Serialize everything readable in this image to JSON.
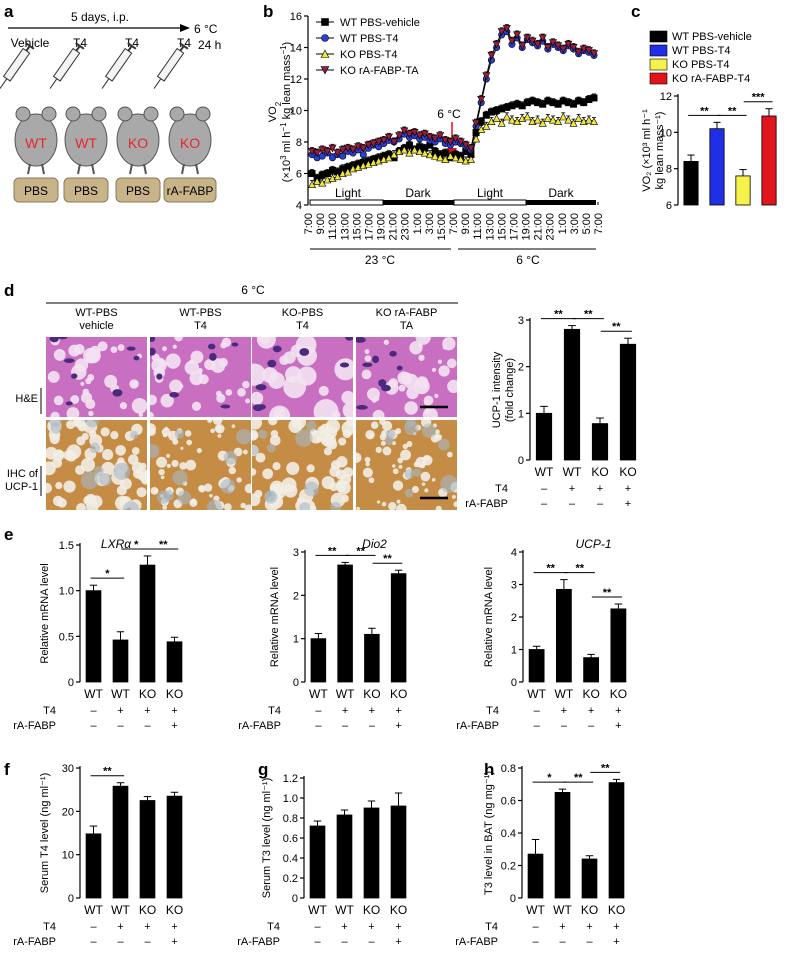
{
  "panels": {
    "a": {
      "letter": "a",
      "timeline_label": "5 days, i.p.",
      "end_label_1": "6 °C",
      "end_label_2": "24 h",
      "injections": [
        "Vehicle",
        "T4",
        "T4",
        "T4"
      ],
      "mice": [
        "WT",
        "WT",
        "KO",
        "KO"
      ],
      "pumps": [
        "PBS",
        "PBS",
        "PBS",
        "rA-FABP"
      ],
      "colors": {
        "mouse_body": "#a9a9a9",
        "mouse_text": "#e8262b",
        "pump": "#c9b48a"
      }
    },
    "b": {
      "letter": "b"
    },
    "c": {
      "letter": "c"
    },
    "d": {
      "letter": "d",
      "condition": "6 °C",
      "columns": [
        [
          "WT-PBS",
          "vehicle"
        ],
        [
          "WT-PBS",
          "T4"
        ],
        [
          "KO-PBS",
          "T4"
        ],
        [
          "KO rA-FABP",
          "TA"
        ]
      ],
      "rows": [
        [
          "H&E"
        ],
        [
          "IHC of",
          "UCP-1"
        ]
      ],
      "colors": {
        "he_base": "#c96fc1",
        "he_fat": "#f3e2f2",
        "he_nuc": "#4b2a7d",
        "ihc_base": "#c58c45",
        "ihc_fat": "#f2ede4",
        "ihc_blue": "#a7b7c7"
      }
    },
    "e": {
      "letter": "e"
    },
    "f": {
      "letter": "f"
    },
    "g": {
      "letter": "g"
    },
    "h": {
      "letter": "h"
    }
  },
  "group_labels": {
    "row1": [
      "WT",
      "WT",
      "KO",
      "KO"
    ],
    "row2_label": "T4",
    "row2": [
      "–",
      "+",
      "+",
      "+"
    ],
    "row3_label": "rA-FABP",
    "row3": [
      "–",
      "–",
      "–",
      "+"
    ]
  },
  "chart_data": [
    {
      "id": "b",
      "type": "line",
      "ylabel_line1": "VO",
      "ylabel_sub": "2",
      "ylabel_line2": "(×10",
      "ylabel_line2b": "3",
      "ylabel_line2c": " ml h",
      "ylabel_line2d": "−1",
      "ylabel_line2e": " kg lean mass",
      "ylabel_line2f": "−1",
      "ylabel_line2g": ")",
      "ylim": [
        4,
        16
      ],
      "yticks": [
        4,
        6,
        8,
        10,
        12,
        14,
        16
      ],
      "xticks": [
        "7:00",
        "9:00",
        "11:00",
        "13:00",
        "15:00",
        "17:00",
        "19:00",
        "21:00",
        "23:00",
        "1:00",
        "3:00",
        "15:00",
        "7:00",
        "9:00",
        "11:00",
        "13:00",
        "15:00",
        "17:00",
        "19:00",
        "21:00",
        "23:00",
        "1:00",
        "3:00",
        "5:00",
        "7:00"
      ],
      "phases": [
        "Light",
        "Dark",
        "Light",
        "Dark"
      ],
      "temperatures": [
        "23 °C",
        "6 °C"
      ],
      "annotation": "6 °C",
      "legend_position": "top-left",
      "series": [
        {
          "name": "WT PBS-vehicle",
          "color": "#000000",
          "marker": "square",
          "values": [
            6.0,
            5.7,
            5.9,
            6.0,
            6.2,
            6.1,
            6.3,
            6.4,
            6.5,
            6.6,
            6.7,
            6.8,
            6.9,
            7.0,
            7.1,
            7.2,
            7.0,
            7.4,
            7.6,
            7.8,
            7.5,
            7.7,
            7.6,
            7.8,
            7.4,
            7.2,
            7.3,
            7.0,
            7.2,
            7.1,
            7.4,
            7.2,
            8.6,
            9.3,
            9.7,
            9.9,
            10.0,
            10.1,
            10.2,
            10.3,
            10.4,
            10.3,
            10.5,
            10.6,
            10.5,
            10.4,
            10.6,
            10.5,
            10.4,
            10.6,
            10.5,
            10.4,
            10.6,
            10.5,
            10.7,
            10.8
          ]
        },
        {
          "name": "WT PBS-T4",
          "color": "#2a3fd8",
          "marker": "circle",
          "values": [
            7.2,
            7.0,
            7.1,
            7.3,
            7.0,
            7.2,
            7.1,
            7.4,
            7.3,
            7.5,
            7.2,
            7.6,
            7.8,
            7.7,
            7.9,
            8.1,
            8.0,
            8.2,
            8.5,
            8.3,
            8.4,
            8.2,
            8.3,
            8.1,
            8.0,
            8.2,
            7.9,
            7.8,
            8.0,
            7.9,
            7.7,
            7.5,
            9.0,
            10.5,
            12.0,
            13.2,
            14.0,
            14.8,
            15.0,
            14.2,
            14.6,
            14.0,
            14.5,
            14.3,
            14.1,
            14.4,
            13.9,
            14.2,
            14.0,
            13.8,
            14.1,
            13.9,
            13.6,
            13.8,
            13.7,
            13.5
          ]
        },
        {
          "name": "KO PBS-T4",
          "color": "#f0e63b",
          "marker": "triangle-up",
          "values": [
            5.3,
            5.5,
            5.4,
            5.6,
            5.7,
            5.8,
            6.0,
            6.1,
            6.3,
            6.4,
            6.5,
            6.6,
            6.7,
            6.8,
            6.9,
            7.0,
            7.2,
            7.4,
            7.5,
            7.3,
            7.5,
            7.4,
            7.3,
            7.2,
            7.1,
            7.0,
            6.9,
            7.1,
            7.0,
            6.9,
            6.8,
            6.9,
            8.2,
            8.8,
            9.0,
            9.3,
            9.5,
            9.2,
            9.6,
            9.4,
            9.3,
            9.5,
            9.6,
            9.3,
            9.4,
            9.2,
            9.5,
            9.4,
            9.3,
            9.6,
            9.4,
            9.2,
            9.5,
            9.3,
            9.4,
            9.3
          ]
        },
        {
          "name": "KO rA-FABP-TA",
          "color": "#9b1c3a",
          "marker": "triangle-down",
          "values": [
            7.4,
            7.3,
            7.5,
            7.4,
            7.6,
            7.3,
            7.5,
            7.6,
            7.5,
            7.7,
            7.6,
            7.8,
            7.9,
            8.0,
            8.1,
            8.3,
            8.0,
            8.4,
            8.7,
            8.5,
            8.6,
            8.4,
            8.5,
            8.3,
            8.2,
            8.4,
            8.1,
            8.0,
            8.2,
            8.0,
            7.8,
            7.6,
            9.2,
            10.7,
            12.2,
            13.5,
            14.2,
            15.0,
            15.2,
            14.4,
            14.8,
            14.1,
            14.6,
            14.4,
            14.2,
            14.6,
            14.0,
            14.3,
            14.1,
            13.9,
            14.2,
            14.0,
            13.7,
            13.9,
            13.8,
            13.6
          ]
        }
      ]
    },
    {
      "id": "c",
      "type": "bar",
      "ylabel": "VO2 (×10³ ml h⁻¹ kg lean mass⁻¹)",
      "ylim": [
        6,
        12
      ],
      "yticks": [
        6,
        8,
        10,
        12
      ],
      "categories": [
        "WT PBS-vehicle",
        "WT PBS-T4",
        "KO PBS-T4",
        "KO rA-FABP-T4"
      ],
      "values": [
        8.4,
        10.2,
        7.6,
        10.9
      ],
      "errors": [
        0.35,
        0.35,
        0.35,
        0.4
      ],
      "colors": [
        "#000000",
        "#1f2fe6",
        "#f5f24a",
        "#e0141b"
      ],
      "legend_position": "top",
      "significance": [
        {
          "from": 0,
          "to": 1,
          "label": "**"
        },
        {
          "from": 1,
          "to": 2,
          "label": "**"
        },
        {
          "from": 2,
          "to": 3,
          "label": "***"
        }
      ]
    },
    {
      "id": "d",
      "type": "bar",
      "ylabel": "UCP-1 intensity (fold change)",
      "ylim": [
        0,
        3
      ],
      "yticks": [
        0,
        1,
        2,
        3
      ],
      "values": [
        1.0,
        2.8,
        0.78,
        2.48
      ],
      "errors": [
        0.15,
        0.08,
        0.12,
        0.13
      ],
      "significance": [
        {
          "from": 0,
          "to": 1,
          "label": "**"
        },
        {
          "from": 1,
          "to": 2,
          "label": "**"
        },
        {
          "from": 2,
          "to": 3,
          "label": "**"
        }
      ]
    },
    {
      "id": "e1",
      "type": "bar",
      "title": "LXRα",
      "ylabel": "Relative mRNA level",
      "ylim": [
        0,
        1.5
      ],
      "yticks": [
        0,
        0.5,
        1.0,
        1.5
      ],
      "ytick_labels": [
        "0",
        "0.5",
        "1.0",
        "1.5"
      ],
      "values": [
        1.0,
        0.46,
        1.28,
        0.44
      ],
      "errors": [
        0.06,
        0.09,
        0.1,
        0.05
      ],
      "significance": [
        {
          "from": 0,
          "to": 1,
          "label": "*"
        },
        {
          "from": 1,
          "to": 2,
          "label": "*"
        },
        {
          "from": 2,
          "to": 3,
          "label": "**"
        }
      ]
    },
    {
      "id": "e2",
      "type": "bar",
      "title": "Dio2",
      "ylabel": "Relative mRNA level",
      "ylim": [
        0,
        3
      ],
      "yticks": [
        0,
        1,
        2,
        3
      ],
      "ytick_labels": [
        "0",
        "1",
        "2",
        "3"
      ],
      "values": [
        1.0,
        2.7,
        1.1,
        2.5
      ],
      "errors": [
        0.12,
        0.06,
        0.14,
        0.08
      ],
      "significance": [
        {
          "from": 0,
          "to": 1,
          "label": "**"
        },
        {
          "from": 1,
          "to": 2,
          "label": "**"
        },
        {
          "from": 2,
          "to": 3,
          "label": "**"
        }
      ]
    },
    {
      "id": "e3",
      "type": "bar",
      "title": "UCP-1",
      "ylabel": "Relative mRNA level",
      "ylim": [
        0,
        4
      ],
      "yticks": [
        0,
        1,
        2,
        3,
        4
      ],
      "ytick_labels": [
        "0",
        "1",
        "2",
        "3",
        "4"
      ],
      "values": [
        1.0,
        2.85,
        0.75,
        2.25
      ],
      "errors": [
        0.1,
        0.3,
        0.1,
        0.15
      ],
      "significance": [
        {
          "from": 0,
          "to": 1,
          "label": "**"
        },
        {
          "from": 1,
          "to": 2,
          "label": "**"
        },
        {
          "from": 2,
          "to": 3,
          "label": "**"
        }
      ]
    },
    {
      "id": "f",
      "type": "bar",
      "ylabel": "Serum T4 level (ng ml⁻¹)",
      "ylim": [
        0,
        30
      ],
      "yticks": [
        0,
        10,
        20,
        30
      ],
      "ytick_labels": [
        "0",
        "10",
        "20",
        "30"
      ],
      "values": [
        14.8,
        25.8,
        22.5,
        23.5
      ],
      "errors": [
        1.8,
        0.8,
        0.9,
        0.9
      ],
      "significance": [
        {
          "from": 0,
          "to": 1,
          "label": "**"
        }
      ]
    },
    {
      "id": "g",
      "type": "bar",
      "ylabel": "Serum T3 level (ng ml⁻¹)",
      "ylim": [
        0,
        1.2
      ],
      "yticks": [
        0,
        0.2,
        0.4,
        0.6,
        0.8,
        1.0,
        1.2
      ],
      "ytick_labels": [
        "0",
        "0.2",
        "0.4",
        "0.6",
        "0.8",
        "1.0",
        "1.2"
      ],
      "values": [
        0.72,
        0.83,
        0.9,
        0.92
      ],
      "errors": [
        0.05,
        0.05,
        0.07,
        0.13
      ],
      "significance": []
    },
    {
      "id": "h",
      "type": "bar",
      "ylabel": "T3 level in BAT (ng mg⁻¹)",
      "ylim": [
        0,
        0.8
      ],
      "yticks": [
        0,
        0.2,
        0.4,
        0.6,
        0.8
      ],
      "ytick_labels": [
        "0",
        "0.2",
        "0.4",
        "0.6",
        "0.8"
      ],
      "values": [
        0.27,
        0.65,
        0.24,
        0.71
      ],
      "errors": [
        0.09,
        0.02,
        0.02,
        0.02
      ],
      "significance": [
        {
          "from": 0,
          "to": 1,
          "label": "*"
        },
        {
          "from": 1,
          "to": 2,
          "label": "**"
        },
        {
          "from": 2,
          "to": 3,
          "label": "**"
        }
      ]
    }
  ]
}
